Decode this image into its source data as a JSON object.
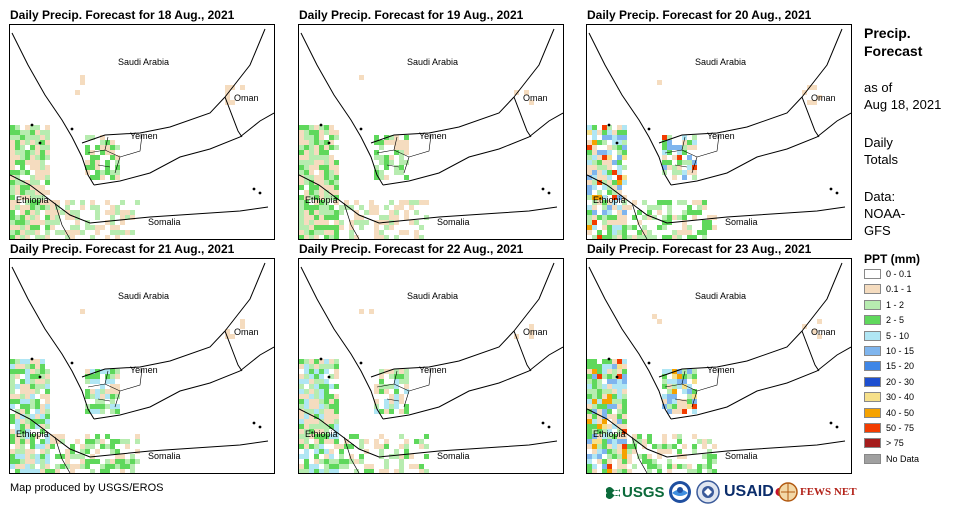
{
  "panels": [
    {
      "title": "Daily Precip. Forecast for 18 Aug., 2021",
      "intensity": 1
    },
    {
      "title": "Daily Precip. Forecast for 19 Aug., 2021",
      "intensity": 1
    },
    {
      "title": "Daily Precip. Forecast for 20 Aug., 2021",
      "intensity": 3
    },
    {
      "title": "Daily Precip. Forecast for 21 Aug., 2021",
      "intensity": 2
    },
    {
      "title": "Daily Precip. Forecast for 22 Aug., 2021",
      "intensity": 2
    },
    {
      "title": "Daily Precip. Forecast for 23 Aug., 2021",
      "intensity": 3
    }
  ],
  "map_labels": {
    "saudi_arabia": "Saudi Arabia",
    "oman": "Oman",
    "yemen": "Yemen",
    "ethiopia": "Ethiopia",
    "somalia": "Somalia"
  },
  "side": {
    "title_line1": "Precip.",
    "title_line2": "Forecast",
    "asof_line1": "as of",
    "asof_line2": "Aug 18, 2021",
    "totals_line1": "Daily",
    "totals_line2": "Totals",
    "data_line1": "Data:",
    "data_line2": "NOAA-",
    "data_line3": "GFS"
  },
  "legend": {
    "title": "PPT (mm)",
    "items": [
      {
        "label": "0 - 0.1",
        "color": "#ffffff"
      },
      {
        "label": "0.1 - 1",
        "color": "#f5dcbf"
      },
      {
        "label": "1 - 2",
        "color": "#b7ecb0"
      },
      {
        "label": "2 - 5",
        "color": "#5fd85c"
      },
      {
        "label": "5 - 10",
        "color": "#b0e6f4"
      },
      {
        "label": "10 - 15",
        "color": "#7fb5ee"
      },
      {
        "label": "15 - 20",
        "color": "#3f86e6"
      },
      {
        "label": "20 - 30",
        "color": "#1e4fd0"
      },
      {
        "label": "30 - 40",
        "color": "#f6e08a"
      },
      {
        "label": "40 - 50",
        "color": "#f5a200"
      },
      {
        "label": "50 - 75",
        "color": "#f23c00"
      },
      {
        "label": "> 75",
        "color": "#a51c1c"
      },
      {
        "label": "No Data",
        "color": "#a0a0a0"
      }
    ]
  },
  "credit": "Map produced by USGS/EROS",
  "logos": {
    "usgs": "USGS",
    "usaid": "USAID",
    "fewsnet": "FEWS NET"
  }
}
